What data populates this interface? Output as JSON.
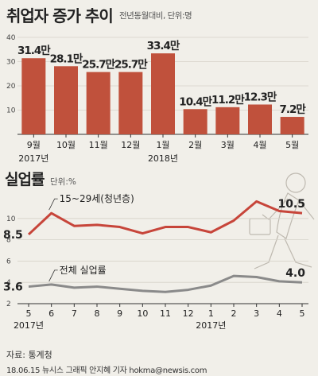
{
  "header": {
    "title": "취업자 증가 추이",
    "subtitle": "전년동월대비, 단위:명"
  },
  "header2": {
    "title": "실업률",
    "subtitle": "단위:%"
  },
  "footer": {
    "source": "자료: 통계청",
    "credit": "18.06.15 뉴시스 그래픽 안지혜 기자 hokma@newsis.com"
  },
  "colors": {
    "bar": "#c0513c",
    "highlight": "#c0392b",
    "youth_line": "#c7453a",
    "total_line": "#8a8a8a",
    "background": "#f1efe9"
  },
  "chart_data": [
    {
      "type": "bar",
      "title": "취업자 증가 추이",
      "subtitle": "전년동월대비, 단위:명",
      "categories": [
        "9월",
        "10월",
        "11월",
        "12월",
        "1월",
        "2월",
        "3월",
        "4월",
        "5월"
      ],
      "year_labels": [
        {
          "index": 0,
          "label": "2017년"
        },
        {
          "index": 4,
          "label": "2018년"
        }
      ],
      "values": [
        31.4,
        28.1,
        25.7,
        25.7,
        33.4,
        10.4,
        11.2,
        12.3,
        7.2
      ],
      "value_labels": [
        "31.4만",
        "28.1만",
        "25.7만",
        "25.7만",
        "33.4만",
        "10.4만",
        "11.2만",
        "12.3만",
        "7.2만"
      ],
      "highlight_index": 8,
      "yticks": [
        10,
        20,
        30,
        40
      ],
      "ylim": [
        0,
        40
      ]
    },
    {
      "type": "line",
      "title": "실업률",
      "subtitle": "단위:%",
      "categories": [
        "5",
        "6",
        "7",
        "8",
        "9",
        "10",
        "11",
        "12",
        "1",
        "2",
        "3",
        "4",
        "5"
      ],
      "year_labels": [
        {
          "index": 0,
          "label": "2017년"
        },
        {
          "index": 8,
          "label": "2017년"
        }
      ],
      "series": [
        {
          "name": "15~29세(청년층)",
          "values": [
            8.5,
            10.5,
            9.3,
            9.4,
            9.2,
            8.6,
            9.2,
            9.2,
            8.7,
            9.8,
            11.6,
            10.7,
            10.5
          ],
          "start_label": "8.5",
          "end_label": "10.5"
        },
        {
          "name": "전체 실업률",
          "values": [
            3.6,
            3.8,
            3.5,
            3.6,
            3.4,
            3.2,
            3.1,
            3.3,
            3.7,
            4.6,
            4.5,
            4.1,
            4.0
          ],
          "start_label": "3.6",
          "end_label": "4.0"
        }
      ],
      "yticks": [
        2,
        4,
        6,
        8,
        10
      ],
      "ylim": [
        2,
        12.6
      ]
    }
  ]
}
